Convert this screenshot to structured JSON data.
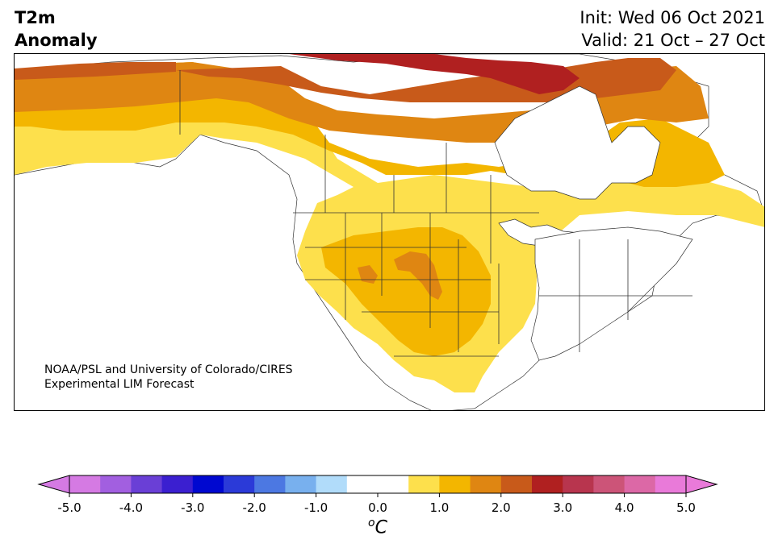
{
  "title": {
    "left_line1": "T2m",
    "left_line2": "Anomaly",
    "right_line1": "Init: Wed 06 Oct 2021",
    "right_line2": "Valid: 21 Oct – 27 Oct"
  },
  "credit": {
    "line1": "NOAA/PSL and University of Colorado/CIRES",
    "line2": "Experimental LIM Forecast"
  },
  "colorbar": {
    "unit_base": "C",
    "unit_sup": "o",
    "ticks": [
      "-5.0",
      "-4.0",
      "-3.0",
      "-2.0",
      "-1.0",
      "0.0",
      "1.0",
      "2.0",
      "3.0",
      "4.0",
      "5.0"
    ],
    "colors": [
      "#d57ae3",
      "#a25fe0",
      "#6a3fd6",
      "#3b1fd0",
      "#0008d0",
      "#2b3ad8",
      "#4c78e2",
      "#78b0ee",
      "#b1dcfa",
      "#ffffff",
      "#ffffff",
      "#fde04c",
      "#f3b600",
      "#df8612",
      "#c85a1a",
      "#b02020",
      "#b8354e",
      "#cc5478",
      "#dc68a6",
      "#e97ad9"
    ],
    "under_color": "#d57ae3",
    "over_color": "#e97ad9"
  },
  "map_colors": {
    "level_0_5": "#fde04c",
    "level_1_0": "#f3b600",
    "level_1_5": "#df8612",
    "level_2_0": "#c85a1a",
    "level_2_5": "#b02020",
    "ocean": "#ffffff",
    "border": "#333333"
  }
}
